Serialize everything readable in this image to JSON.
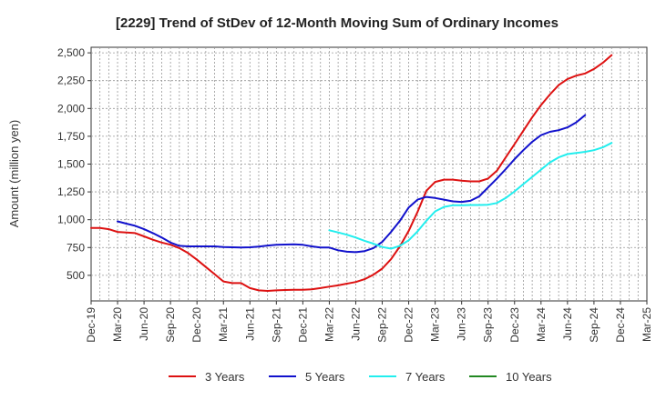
{
  "chart_data": {
    "type": "line",
    "title": "[2229]  Trend of StDev of 12-Month Moving Sum of Ordinary Incomes",
    "xlabel": "",
    "ylabel": "Amount (million yen)",
    "ylim": [
      270,
      2550
    ],
    "yticks": [
      500,
      750,
      1000,
      1250,
      1500,
      1750,
      2000,
      2250,
      2500
    ],
    "ytick_labels": [
      "500",
      "750",
      "1,000",
      "1,250",
      "1,500",
      "1,750",
      "2,000",
      "2,250",
      "2,500"
    ],
    "x_tick_labels": [
      "Dec-19",
      "Mar-20",
      "Jun-20",
      "Sep-20",
      "Dec-20",
      "Mar-21",
      "Jun-21",
      "Sep-21",
      "Dec-21",
      "Mar-22",
      "Jun-22",
      "Sep-22",
      "Dec-22",
      "Mar-23",
      "Jun-23",
      "Sep-23",
      "Dec-23",
      "Mar-24",
      "Jun-24",
      "Sep-24",
      "Dec-24",
      "Mar-25"
    ],
    "x_months_range": [
      0,
      63
    ],
    "grid": true,
    "legend_position": "bottom",
    "series": [
      {
        "name": "3 Years",
        "color": "#dd1111",
        "start_month": 0,
        "values": [
          925,
          925,
          915,
          890,
          885,
          880,
          850,
          820,
          795,
          775,
          745,
          700,
          640,
          575,
          510,
          445,
          430,
          430,
          385,
          365,
          360,
          365,
          368,
          370,
          370,
          375,
          385,
          398,
          410,
          425,
          440,
          465,
          505,
          560,
          645,
          760,
          900,
          1070,
          1260,
          1340,
          1360,
          1360,
          1350,
          1345,
          1345,
          1370,
          1440,
          1560,
          1680,
          1800,
          1920,
          2030,
          2125,
          2210,
          2265,
          2295,
          2315,
          2355,
          2410,
          2480
        ]
      },
      {
        "name": "5 Years",
        "color": "#1111cc",
        "start_month": 3,
        "values": [
          985,
          965,
          945,
          915,
          880,
          840,
          795,
          765,
          760,
          760,
          760,
          760,
          755,
          752,
          750,
          752,
          758,
          768,
          775,
          777,
          778,
          774,
          760,
          750,
          750,
          725,
          712,
          708,
          718,
          745,
          800,
          890,
          990,
          1110,
          1180,
          1205,
          1195,
          1180,
          1165,
          1160,
          1170,
          1210,
          1290,
          1370,
          1455,
          1545,
          1625,
          1700,
          1760,
          1790,
          1805,
          1830,
          1875,
          1940
        ]
      },
      {
        "name": "7 Years",
        "color": "#22eeee",
        "start_month": 27,
        "values": [
          905,
          885,
          865,
          840,
          810,
          785,
          755,
          740,
          765,
          815,
          895,
          990,
          1075,
          1115,
          1130,
          1130,
          1132,
          1132,
          1135,
          1150,
          1195,
          1255,
          1320,
          1385,
          1450,
          1515,
          1560,
          1590,
          1600,
          1610,
          1625,
          1650,
          1690
        ]
      },
      {
        "name": "10 Years",
        "color": "#228822",
        "start_month": 0,
        "values": []
      }
    ]
  }
}
